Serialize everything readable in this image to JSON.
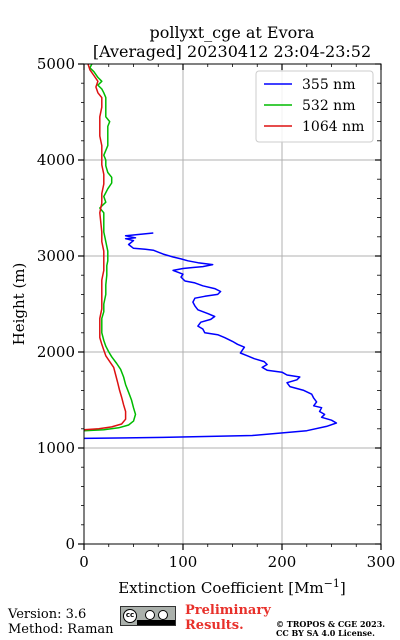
{
  "chart_data": {
    "type": "line",
    "title": "pollyxt_cge at Evora",
    "subtitle": "[Averaged] 20230412 23:04-23:52",
    "xlabel": "Extinction Coefficient [Mm",
    "xlabel_sup": "−1",
    "xlabel_close": "]",
    "ylabel": "Height (m)",
    "xlim": [
      0,
      300
    ],
    "ylim": [
      0,
      5000
    ],
    "xticks": [
      0,
      100,
      200,
      300
    ],
    "yticks": [
      0,
      1000,
      2000,
      3000,
      4000,
      5000
    ],
    "grid": true,
    "legend_position": "top-right",
    "series": [
      {
        "name": "355 nm",
        "color": "#0000ff",
        "points": [
          [
            0,
            1100
          ],
          [
            80,
            1110
          ],
          [
            170,
            1130
          ],
          [
            225,
            1180
          ],
          [
            245,
            1225
          ],
          [
            255,
            1260
          ],
          [
            250,
            1290
          ],
          [
            240,
            1320
          ],
          [
            243,
            1350
          ],
          [
            238,
            1380
          ],
          [
            240,
            1420
          ],
          [
            232,
            1440
          ],
          [
            235,
            1480
          ],
          [
            232,
            1520
          ],
          [
            230,
            1560
          ],
          [
            222,
            1600
          ],
          [
            208,
            1640
          ],
          [
            205,
            1680
          ],
          [
            215,
            1710
          ],
          [
            218,
            1740
          ],
          [
            205,
            1760
          ],
          [
            200,
            1790
          ],
          [
            185,
            1810
          ],
          [
            180,
            1840
          ],
          [
            185,
            1870
          ],
          [
            182,
            1900
          ],
          [
            172,
            1930
          ],
          [
            165,
            1960
          ],
          [
            158,
            1990
          ],
          [
            160,
            2020
          ],
          [
            162,
            2050
          ],
          [
            155,
            2080
          ],
          [
            150,
            2110
          ],
          [
            142,
            2150
          ],
          [
            135,
            2180
          ],
          [
            122,
            2200
          ],
          [
            120,
            2240
          ],
          [
            115,
            2270
          ],
          [
            118,
            2310
          ],
          [
            128,
            2340
          ],
          [
            132,
            2370
          ],
          [
            125,
            2400
          ],
          [
            115,
            2440
          ],
          [
            112,
            2480
          ],
          [
            110,
            2520
          ],
          [
            112,
            2560
          ],
          [
            122,
            2580
          ],
          [
            135,
            2600
          ],
          [
            138,
            2630
          ],
          [
            132,
            2660
          ],
          [
            120,
            2690
          ],
          [
            112,
            2720
          ],
          [
            102,
            2740
          ],
          [
            98,
            2780
          ],
          [
            100,
            2810
          ],
          [
            95,
            2830
          ],
          [
            90,
            2850
          ],
          [
            100,
            2870
          ],
          [
            110,
            2880
          ],
          [
            120,
            2890
          ],
          [
            130,
            2910
          ],
          [
            115,
            2930
          ],
          [
            105,
            2950
          ],
          [
            98,
            2970
          ],
          [
            90,
            2990
          ],
          [
            80,
            3020
          ],
          [
            75,
            3040
          ],
          [
            70,
            3060
          ],
          [
            62,
            3070
          ],
          [
            50,
            3080
          ],
          [
            45,
            3120
          ],
          [
            50,
            3160
          ],
          [
            42,
            3180
          ],
          [
            52,
            3190
          ],
          [
            42,
            3210
          ],
          [
            70,
            3240
          ]
        ]
      },
      {
        "name": "532 nm",
        "color": "#00bb00",
        "points": [
          [
            0,
            1180
          ],
          [
            20,
            1190
          ],
          [
            35,
            1210
          ],
          [
            45,
            1240
          ],
          [
            50,
            1280
          ],
          [
            52,
            1350
          ],
          [
            50,
            1420
          ],
          [
            48,
            1500
          ],
          [
            45,
            1580
          ],
          [
            42,
            1660
          ],
          [
            40,
            1740
          ],
          [
            37,
            1820
          ],
          [
            33,
            1880
          ],
          [
            28,
            1950
          ],
          [
            25,
            2000
          ],
          [
            22,
            2060
          ],
          [
            20,
            2120
          ],
          [
            18,
            2200
          ],
          [
            18,
            2270
          ],
          [
            18,
            2350
          ],
          [
            20,
            2420
          ],
          [
            20,
            2500
          ],
          [
            22,
            2600
          ],
          [
            22,
            2700
          ],
          [
            23,
            2800
          ],
          [
            23,
            2900
          ],
          [
            24,
            2950
          ],
          [
            24,
            3050
          ],
          [
            22,
            3150
          ],
          [
            20,
            3250
          ],
          [
            20,
            3350
          ],
          [
            20,
            3450
          ],
          [
            16,
            3500
          ],
          [
            22,
            3560
          ],
          [
            20,
            3620
          ],
          [
            24,
            3700
          ],
          [
            28,
            3760
          ],
          [
            28,
            3820
          ],
          [
            24,
            3870
          ],
          [
            22,
            3940
          ],
          [
            22,
            4000
          ],
          [
            20,
            4050
          ],
          [
            22,
            4100
          ],
          [
            24,
            4150
          ],
          [
            24,
            4250
          ],
          [
            24,
            4350
          ],
          [
            26,
            4400
          ],
          [
            22,
            4450
          ],
          [
            22,
            4550
          ],
          [
            22,
            4600
          ],
          [
            22,
            4650
          ],
          [
            20,
            4700
          ],
          [
            18,
            4740
          ],
          [
            14,
            4780
          ],
          [
            18,
            4820
          ],
          [
            14,
            4860
          ],
          [
            10,
            4920
          ],
          [
            6,
            4960
          ],
          [
            8,
            5000
          ]
        ]
      },
      {
        "name": "1064 nm",
        "color": "#dd1111",
        "points": [
          [
            0,
            1190
          ],
          [
            15,
            1200
          ],
          [
            28,
            1220
          ],
          [
            38,
            1250
          ],
          [
            42,
            1300
          ],
          [
            42,
            1380
          ],
          [
            40,
            1450
          ],
          [
            38,
            1530
          ],
          [
            36,
            1600
          ],
          [
            34,
            1680
          ],
          [
            32,
            1760
          ],
          [
            30,
            1840
          ],
          [
            26,
            1900
          ],
          [
            22,
            1960
          ],
          [
            20,
            2020
          ],
          [
            18,
            2080
          ],
          [
            16,
            2150
          ],
          [
            16,
            2250
          ],
          [
            16,
            2350
          ],
          [
            18,
            2450
          ],
          [
            18,
            2550
          ],
          [
            18,
            2650
          ],
          [
            18,
            2750
          ],
          [
            20,
            2850
          ],
          [
            20,
            2950
          ],
          [
            20,
            3050
          ],
          [
            18,
            3150
          ],
          [
            18,
            3250
          ],
          [
            17,
            3350
          ],
          [
            16,
            3450
          ],
          [
            18,
            3550
          ],
          [
            18,
            3650
          ],
          [
            20,
            3750
          ],
          [
            20,
            3850
          ],
          [
            18,
            3950
          ],
          [
            18,
            4050
          ],
          [
            18,
            4150
          ],
          [
            16,
            4250
          ],
          [
            16,
            4350
          ],
          [
            16,
            4450
          ],
          [
            18,
            4550
          ],
          [
            18,
            4650
          ],
          [
            14,
            4700
          ],
          [
            12,
            4760
          ],
          [
            14,
            4820
          ],
          [
            10,
            4880
          ],
          [
            6,
            4940
          ],
          [
            4,
            5000
          ]
        ]
      }
    ]
  },
  "footer": {
    "version": "Version: 3.6",
    "method": "Method: Raman",
    "preliminary_line1": "Preliminary",
    "preliminary_line2": "Results.",
    "copyright_line1": "© TROPOS & CGE 2023.",
    "copyright_line2": "CC BY SA 4.0 License."
  }
}
